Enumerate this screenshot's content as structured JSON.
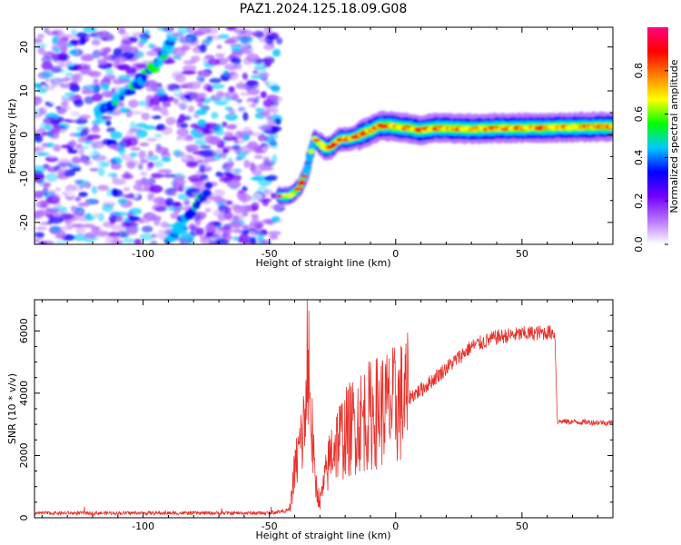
{
  "figure": {
    "title": "PAZ1.2024.125.18.09.G08"
  },
  "chart_data": [
    {
      "type": "heatmap",
      "xlabel": "Height of straight line (km)",
      "ylabel": "Frequency (Hz)",
      "xlim": [
        -143,
        86
      ],
      "ylim": [
        -25,
        24.5
      ],
      "xticks": [
        -100,
        -50,
        0,
        50
      ],
      "yticks": [
        -20,
        -10,
        0,
        10,
        20
      ],
      "tick_labels_x": [
        "-100",
        "-50",
        "0",
        "50"
      ],
      "tick_labels_y": [
        "-20",
        "-10",
        "0",
        "10",
        "20"
      ],
      "noise_region_x": [
        -143,
        -46
      ],
      "ridge": {
        "x": [
          -46,
          -42,
          -38,
          -35,
          -34,
          -32,
          -30,
          -28,
          -26,
          -22,
          -18,
          -14,
          -10,
          -6,
          -2,
          5,
          10,
          15,
          20,
          30,
          40,
          50,
          60,
          70,
          80,
          86
        ],
        "y": [
          -14,
          -14,
          -12,
          -8,
          -5,
          -1,
          -2,
          -3,
          -3,
          -1,
          -1,
          0,
          1,
          2,
          2,
          1.5,
          1,
          1.5,
          1.5,
          1.3,
          1.5,
          1.5,
          1.6,
          1.7,
          1.8,
          1.8
        ]
      },
      "diagonal_streaks": [
        {
          "x": [
            -118,
            -112,
            -106,
            -100,
            -95,
            -91,
            -88
          ],
          "y": [
            5,
            7,
            10,
            13,
            16,
            19,
            23
          ]
        },
        {
          "x": [
            -90,
            -86,
            -82,
            -78,
            -74
          ],
          "y": [
            -24,
            -21,
            -18,
            -15,
            -12
          ]
        }
      ],
      "colorbar": {
        "label": "Normalized spectral amplitude",
        "ticks": [
          0.0,
          0.2,
          0.4,
          0.6,
          0.8
        ],
        "tick_labels": [
          "0.0",
          "0.2",
          "0.4",
          "0.6",
          "0.8"
        ],
        "range": [
          0,
          1
        ],
        "colors": [
          "#ffffff",
          "#b673ff",
          "#7200ff",
          "#0000ff",
          "#00c8ff",
          "#00ff00",
          "#ffff00",
          "#ff7f00",
          "#ff0000",
          "#ff0080"
        ]
      }
    },
    {
      "type": "line",
      "xlabel": "Height of straight line (km)",
      "ylabel": "SNR (10 * v/v)",
      "xlim": [
        -143,
        86
      ],
      "ylim": [
        0,
        7000
      ],
      "xticks": [
        -100,
        -50,
        0,
        50
      ],
      "yticks": [
        0,
        2000,
        4000,
        6000
      ],
      "tick_labels_x": [
        "-100",
        "-50",
        "0",
        "50"
      ],
      "tick_labels_y": [
        "0",
        "2000",
        "4000",
        "6000"
      ],
      "color": "#e8302a",
      "envelope": {
        "x": [
          -143,
          -50,
          -42,
          -40,
          -37,
          -34,
          -32,
          -30,
          -25,
          -20,
          -15,
          -10,
          -5,
          0,
          10,
          20,
          30,
          40,
          50,
          60,
          63,
          64,
          70,
          86
        ],
        "y": [
          150,
          150,
          250,
          1500,
          2600,
          3800,
          1200,
          500,
          2300,
          2700,
          3100,
          3300,
          3500,
          3600,
          4100,
          4800,
          5500,
          5800,
          5900,
          5950,
          5950,
          3100,
          3080,
          3050
        ]
      }
    }
  ]
}
